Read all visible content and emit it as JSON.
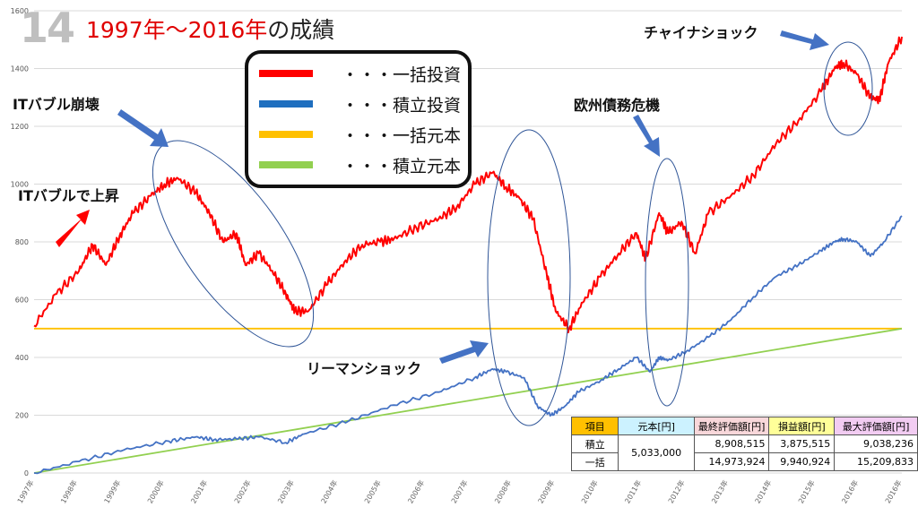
{
  "slide_number": "14",
  "title": "1997年〜2016年",
  "title_suffix": "の成績",
  "legend": [
    {
      "label": "・・・一括投資",
      "color": "#ff0000"
    },
    {
      "label": "・・・積立投資",
      "color": "#1f6fbf"
    },
    {
      "label": "・・・一括元本",
      "color": "#ffc000"
    },
    {
      "label": "・・・積立元本",
      "color": "#92d050"
    }
  ],
  "annotations": {
    "it_bubble_up": "ITバブルで上昇",
    "it_bubble_crash": "ITバブル崩壊",
    "lehman": "リーマンショック",
    "europe": "欧州債務危機",
    "china": "チャイナショック"
  },
  "table": {
    "headers": [
      "項目",
      "元本[円]",
      "最終評価額[円]",
      "損益額[円]",
      "最大評価額[円]"
    ],
    "header_colors": [
      "#ffc000",
      "#ccf2ff",
      "#f8d7da",
      "#ffff99",
      "#f2ccf2"
    ],
    "rows": [
      {
        "label": "積立",
        "final": "8,908,515",
        "profit": "3,875,515",
        "max": "9,038,236"
      },
      {
        "label": "一括",
        "final": "14,973,924",
        "profit": "9,940,924",
        "max": "15,209,833"
      }
    ],
    "principal": "5,033,000"
  },
  "chart_data": {
    "type": "line",
    "ylim": [
      0,
      1600
    ],
    "yticks": [
      "0",
      "200",
      "400",
      "600",
      "800",
      "1000",
      "1200",
      "1400",
      "1600"
    ],
    "x_labels": [
      "1997年",
      "1998年",
      "1999年",
      "2000年",
      "2001年",
      "2002年",
      "2003年",
      "2004年",
      "2005年",
      "2006年",
      "2007年",
      "2008年",
      "2009年",
      "2010年",
      "2011年",
      "2012年",
      "2013年",
      "2014年",
      "2015年",
      "2016年",
      "2016年"
    ],
    "series": [
      {
        "key": "lump",
        "color": "#ff0000",
        "x": [
          1997.0,
          1997.5,
          1998.0,
          1998.3,
          1998.6,
          1998.9,
          1999.2,
          1999.6,
          1999.9,
          2000.2,
          2000.6,
          2000.9,
          2001.2,
          2001.5,
          2001.7,
          2002.0,
          2002.3,
          2002.6,
          2002.8,
          2003.1,
          2003.5,
          2003.9,
          2004.3,
          2004.7,
          2005.0,
          2005.5,
          2006.0,
          2006.4,
          2006.8,
          2007.2,
          2007.5,
          2007.8,
          2008.1,
          2008.4,
          2008.6,
          2008.9,
          2009.2,
          2009.6,
          2010.0,
          2010.4,
          2010.6,
          2010.9,
          2011.1,
          2011.4,
          2011.7,
          2012.0,
          2012.5,
          2013.0,
          2013.5,
          2014.0,
          2014.5,
          2014.8,
          2015.0,
          2015.3,
          2015.6,
          2015.8,
          2016.0,
          2016.3
        ],
        "values": [
          510,
          620,
          700,
          790,
          720,
          820,
          900,
          960,
          1000,
          1020,
          970,
          900,
          800,
          830,
          720,
          760,
          700,
          620,
          560,
          560,
          650,
          730,
          790,
          800,
          810,
          850,
          880,
          920,
          1000,
          1040,
          990,
          950,
          880,
          690,
          560,
          500,
          590,
          680,
          760,
          830,
          740,
          900,
          830,
          870,
          760,
          900,
          960,
          1030,
          1140,
          1220,
          1320,
          1400,
          1420,
          1380,
          1300,
          1290,
          1420,
          1510
        ]
      },
      {
        "key": "dca",
        "color": "#4472c4",
        "x": [
          1997.0,
          1998.0,
          1999.0,
          2000.0,
          2000.6,
          2001.0,
          2001.5,
          2002.0,
          2002.6,
          2003.0,
          2004.0,
          2005.0,
          2006.0,
          2006.8,
          2007.2,
          2007.5,
          2007.9,
          2008.2,
          2008.5,
          2008.8,
          2009.1,
          2009.6,
          2010.0,
          2010.4,
          2010.7,
          2010.9,
          2011.1,
          2011.5,
          2012.0,
          2012.5,
          2013.0,
          2013.5,
          2014.0,
          2014.5,
          2014.8,
          2015.0,
          2015.3,
          2015.6,
          2015.9,
          2016.3
        ],
        "values": [
          0,
          40,
          80,
          110,
          125,
          115,
          118,
          125,
          105,
          135,
          180,
          235,
          280,
          330,
          360,
          350,
          330,
          230,
          200,
          230,
          280,
          320,
          360,
          400,
          350,
          400,
          390,
          420,
          470,
          530,
          610,
          680,
          720,
          770,
          800,
          810,
          800,
          750,
          800,
          890
        ]
      },
      {
        "key": "lump_principal",
        "color": "#ffc000",
        "x": [
          1997.0,
          2016.3
        ],
        "values": [
          500,
          500
        ]
      },
      {
        "key": "dca_principal",
        "color": "#92d050",
        "x": [
          1997.0,
          2016.3
        ],
        "values": [
          0,
          500
        ]
      }
    ]
  }
}
